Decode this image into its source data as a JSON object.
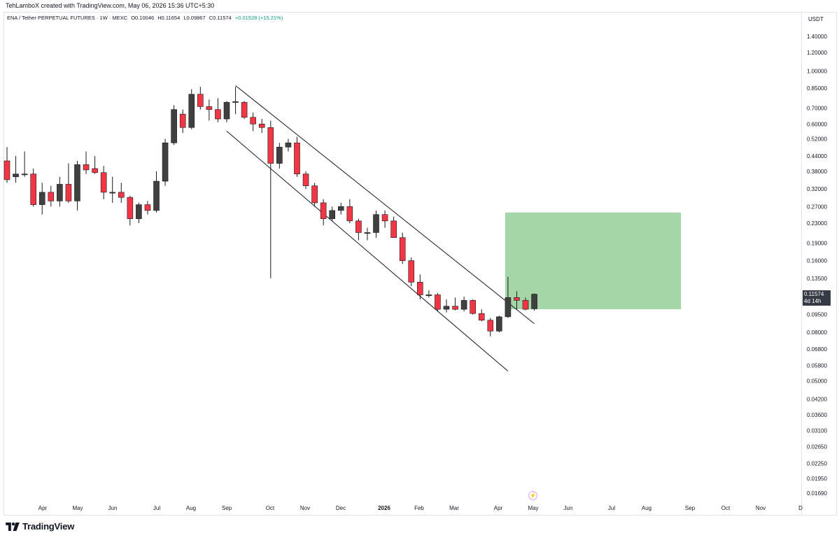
{
  "caption": "TehLamboX created with TradingView.com, May 06, 2026 15:36 UTC+5:30",
  "legend": {
    "symbol": "ENA / Tether PERPETUAL FUTURES · 1W · MEXC",
    "open": "O0.10046",
    "high": "H0.11654",
    "low": "L0.09867",
    "close": "C0.11574",
    "change": "+0.01528 (+15.21%)"
  },
  "currency": "USDT",
  "last_price_label": {
    "price": "0.11574",
    "countdown": "4d 14h"
  },
  "footer": {
    "brand": "TradingView"
  },
  "icons": {
    "snapshot": "lightning-icon",
    "logo": "tradingview-logo-icon"
  },
  "colors": {
    "up": "#404040",
    "down": "#f23645",
    "target_zone": "#a5d6a7",
    "grid_border": "#e0e3eb"
  },
  "chart_data": {
    "type": "candlestick",
    "scale": "log",
    "ylim": [
      0.0155,
      1.6
    ],
    "y_ticks": [
      "1.40000",
      "1.20000",
      "1.00000",
      "0.85000",
      "0.70000",
      "0.60000",
      "0.52000",
      "0.44000",
      "0.38000",
      "0.32000",
      "0.27000",
      "0.23000",
      "0.19000",
      "0.16000",
      "0.13500",
      "0.11574",
      "0.09500",
      "0.08000",
      "0.06800",
      "0.05800",
      "0.05000",
      "0.04200",
      "0.03600",
      "0.03100",
      "0.02650",
      "0.02250",
      "0.01950",
      "0.01690"
    ],
    "x_ticks": [
      "Apr",
      "May",
      "Jun",
      "Jul",
      "Aug",
      "Sep",
      "Oct",
      "Nov",
      "Dec",
      "2026",
      "Feb",
      "Mar",
      "Apr",
      "May",
      "Jun",
      "Jul",
      "Aug",
      "Sep",
      "Oct",
      "Nov",
      "D"
    ],
    "candles": [
      {
        "o": 0.42,
        "h": 0.48,
        "l": 0.34,
        "c": 0.35
      },
      {
        "o": 0.36,
        "h": 0.44,
        "l": 0.34,
        "c": 0.37
      },
      {
        "o": 0.37,
        "h": 0.46,
        "l": 0.36,
        "c": 0.37
      },
      {
        "o": 0.37,
        "h": 0.39,
        "l": 0.27,
        "c": 0.275
      },
      {
        "o": 0.275,
        "h": 0.34,
        "l": 0.25,
        "c": 0.31
      },
      {
        "o": 0.31,
        "h": 0.33,
        "l": 0.27,
        "c": 0.285
      },
      {
        "o": 0.285,
        "h": 0.36,
        "l": 0.27,
        "c": 0.335
      },
      {
        "o": 0.335,
        "h": 0.41,
        "l": 0.28,
        "c": 0.285
      },
      {
        "o": 0.285,
        "h": 0.42,
        "l": 0.26,
        "c": 0.405
      },
      {
        "o": 0.405,
        "h": 0.46,
        "l": 0.37,
        "c": 0.385
      },
      {
        "o": 0.39,
        "h": 0.44,
        "l": 0.37,
        "c": 0.375
      },
      {
        "o": 0.375,
        "h": 0.4,
        "l": 0.29,
        "c": 0.31
      },
      {
        "o": 0.31,
        "h": 0.36,
        "l": 0.28,
        "c": 0.31
      },
      {
        "o": 0.31,
        "h": 0.34,
        "l": 0.28,
        "c": 0.295
      },
      {
        "o": 0.295,
        "h": 0.3,
        "l": 0.225,
        "c": 0.24
      },
      {
        "o": 0.24,
        "h": 0.28,
        "l": 0.23,
        "c": 0.275
      },
      {
        "o": 0.275,
        "h": 0.285,
        "l": 0.25,
        "c": 0.26
      },
      {
        "o": 0.26,
        "h": 0.38,
        "l": 0.255,
        "c": 0.345
      },
      {
        "o": 0.345,
        "h": 0.52,
        "l": 0.33,
        "c": 0.5
      },
      {
        "o": 0.5,
        "h": 0.72,
        "l": 0.49,
        "c": 0.69
      },
      {
        "o": 0.66,
        "h": 0.69,
        "l": 0.55,
        "c": 0.58
      },
      {
        "o": 0.58,
        "h": 0.84,
        "l": 0.57,
        "c": 0.8
      },
      {
        "o": 0.8,
        "h": 0.86,
        "l": 0.69,
        "c": 0.71
      },
      {
        "o": 0.71,
        "h": 0.76,
        "l": 0.62,
        "c": 0.69
      },
      {
        "o": 0.69,
        "h": 0.77,
        "l": 0.61,
        "c": 0.63
      },
      {
        "o": 0.63,
        "h": 0.75,
        "l": 0.61,
        "c": 0.74
      },
      {
        "o": 0.74,
        "h": 0.86,
        "l": 0.66,
        "c": 0.745
      },
      {
        "o": 0.74,
        "h": 0.75,
        "l": 0.63,
        "c": 0.64
      },
      {
        "o": 0.64,
        "h": 0.67,
        "l": 0.56,
        "c": 0.6
      },
      {
        "o": 0.6,
        "h": 0.63,
        "l": 0.55,
        "c": 0.58
      },
      {
        "o": 0.58,
        "h": 0.62,
        "l": 0.135,
        "c": 0.41
      },
      {
        "o": 0.41,
        "h": 0.5,
        "l": 0.39,
        "c": 0.48
      },
      {
        "o": 0.48,
        "h": 0.52,
        "l": 0.46,
        "c": 0.5
      },
      {
        "o": 0.5,
        "h": 0.53,
        "l": 0.36,
        "c": 0.37
      },
      {
        "o": 0.37,
        "h": 0.38,
        "l": 0.32,
        "c": 0.33
      },
      {
        "o": 0.33,
        "h": 0.34,
        "l": 0.27,
        "c": 0.28
      },
      {
        "o": 0.28,
        "h": 0.29,
        "l": 0.225,
        "c": 0.24
      },
      {
        "o": 0.24,
        "h": 0.27,
        "l": 0.235,
        "c": 0.26
      },
      {
        "o": 0.26,
        "h": 0.28,
        "l": 0.25,
        "c": 0.27
      },
      {
        "o": 0.27,
        "h": 0.29,
        "l": 0.23,
        "c": 0.235
      },
      {
        "o": 0.235,
        "h": 0.24,
        "l": 0.195,
        "c": 0.21
      },
      {
        "o": 0.21,
        "h": 0.22,
        "l": 0.195,
        "c": 0.21
      },
      {
        "o": 0.21,
        "h": 0.26,
        "l": 0.2,
        "c": 0.25
      },
      {
        "o": 0.25,
        "h": 0.26,
        "l": 0.22,
        "c": 0.235
      },
      {
        "o": 0.235,
        "h": 0.245,
        "l": 0.2,
        "c": 0.2
      },
      {
        "o": 0.2,
        "h": 0.21,
        "l": 0.155,
        "c": 0.16
      },
      {
        "o": 0.16,
        "h": 0.165,
        "l": 0.125,
        "c": 0.13
      },
      {
        "o": 0.13,
        "h": 0.14,
        "l": 0.11,
        "c": 0.115
      },
      {
        "o": 0.115,
        "h": 0.12,
        "l": 0.112,
        "c": 0.115
      },
      {
        "o": 0.115,
        "h": 0.117,
        "l": 0.098,
        "c": 0.1
      },
      {
        "o": 0.1,
        "h": 0.11,
        "l": 0.097,
        "c": 0.103
      },
      {
        "o": 0.103,
        "h": 0.112,
        "l": 0.099,
        "c": 0.1
      },
      {
        "o": 0.1,
        "h": 0.113,
        "l": 0.098,
        "c": 0.109
      },
      {
        "o": 0.109,
        "h": 0.11,
        "l": 0.095,
        "c": 0.096
      },
      {
        "o": 0.096,
        "h": 0.1,
        "l": 0.089,
        "c": 0.09
      },
      {
        "o": 0.09,
        "h": 0.092,
        "l": 0.077,
        "c": 0.081
      },
      {
        "o": 0.081,
        "h": 0.094,
        "l": 0.08,
        "c": 0.093
      },
      {
        "o": 0.093,
        "h": 0.137,
        "l": 0.092,
        "c": 0.112
      },
      {
        "o": 0.112,
        "h": 0.119,
        "l": 0.1,
        "c": 0.109
      },
      {
        "o": 0.109,
        "h": 0.112,
        "l": 0.099,
        "c": 0.1
      },
      {
        "o": 0.10046,
        "h": 0.11654,
        "l": 0.09867,
        "c": 0.11574
      }
    ],
    "channel_lines": [
      {
        "from_bar": 26,
        "from_price": 0.87,
        "to_bar": 60,
        "to_price": 0.087
      },
      {
        "from_bar": 25,
        "from_price": 0.56,
        "to_bar": 57,
        "to_price": 0.055
      }
    ],
    "target_zone": {
      "from_bar": 57,
      "to_bar": 77,
      "top": 0.255,
      "bottom": 0.1
    }
  }
}
